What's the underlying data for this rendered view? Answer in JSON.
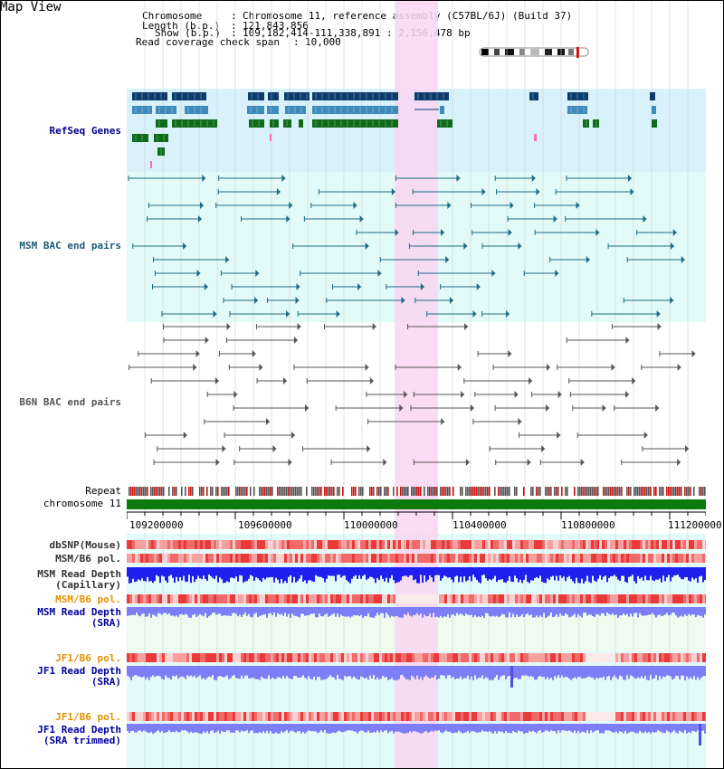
{
  "title": "Map View",
  "header": {
    "chromosome_label": "Chromosome",
    "chromosome_value": "Chromosome 11, reference assembly (C57BL/6J) (Build 37)",
    "length_label": "Length (b.p.)",
    "length_value": "121,843,856",
    "show_label": "Show (b.p.)",
    "show_value": "109,182,414-111,338,891 : 2,156,478 bp",
    "coverage_label": "Read coverage check span",
    "coverage_value": "10,000"
  },
  "tracks": {
    "refseq": "RefSeq Genes",
    "msm_bac": "MSM BAC end pairs",
    "b6n_bac": "B6N BAC end pairs",
    "repeat": "Repeat",
    "chromosome": "chromosome 11",
    "dbsnp": "dbSNP(Mouse)",
    "msm_b6_pol_1": "MSM/B6 pol.",
    "msm_read_depth_cap_1": "MSM Read Depth",
    "msm_read_depth_cap_2": "(Capillary)",
    "msm_b6_pol_2": "MSM/B6 pol.",
    "msm_read_depth_sra_1": "MSM Read Depth",
    "msm_read_depth_sra_2": "(SRA)",
    "jf1_b6_pol_1": "JF1/B6 pol.",
    "jf1_read_depth_1": "JF1 Read Depth",
    "jf1_read_depth_2": "(SRA)",
    "jf1_b6_pol_2": "JF1/B6 pol.",
    "jf1_trim_1": "JF1 Read Depth",
    "jf1_trim_2": "(SRA trimmed)"
  },
  "axis": {
    "ticks": [
      "109200000",
      "109600000",
      "110000000",
      "110400000",
      "110800000",
      "111200000"
    ]
  },
  "colors": {
    "highlight": "#f9d6f2",
    "refseq_bg": "#d8f1fb",
    "track_bg": "#e3fbf8",
    "gene_dark": "#0b3c6d",
    "gene_mid": "#3f8bbb",
    "gene_green": "#0e6b1a",
    "msm_bac": "#1d6a86",
    "b6n_bac": "#555555",
    "chrom": "#0c7a0c",
    "msm_depth": "#1f1ff0",
    "sra_depth": "#7d7df6"
  }
}
